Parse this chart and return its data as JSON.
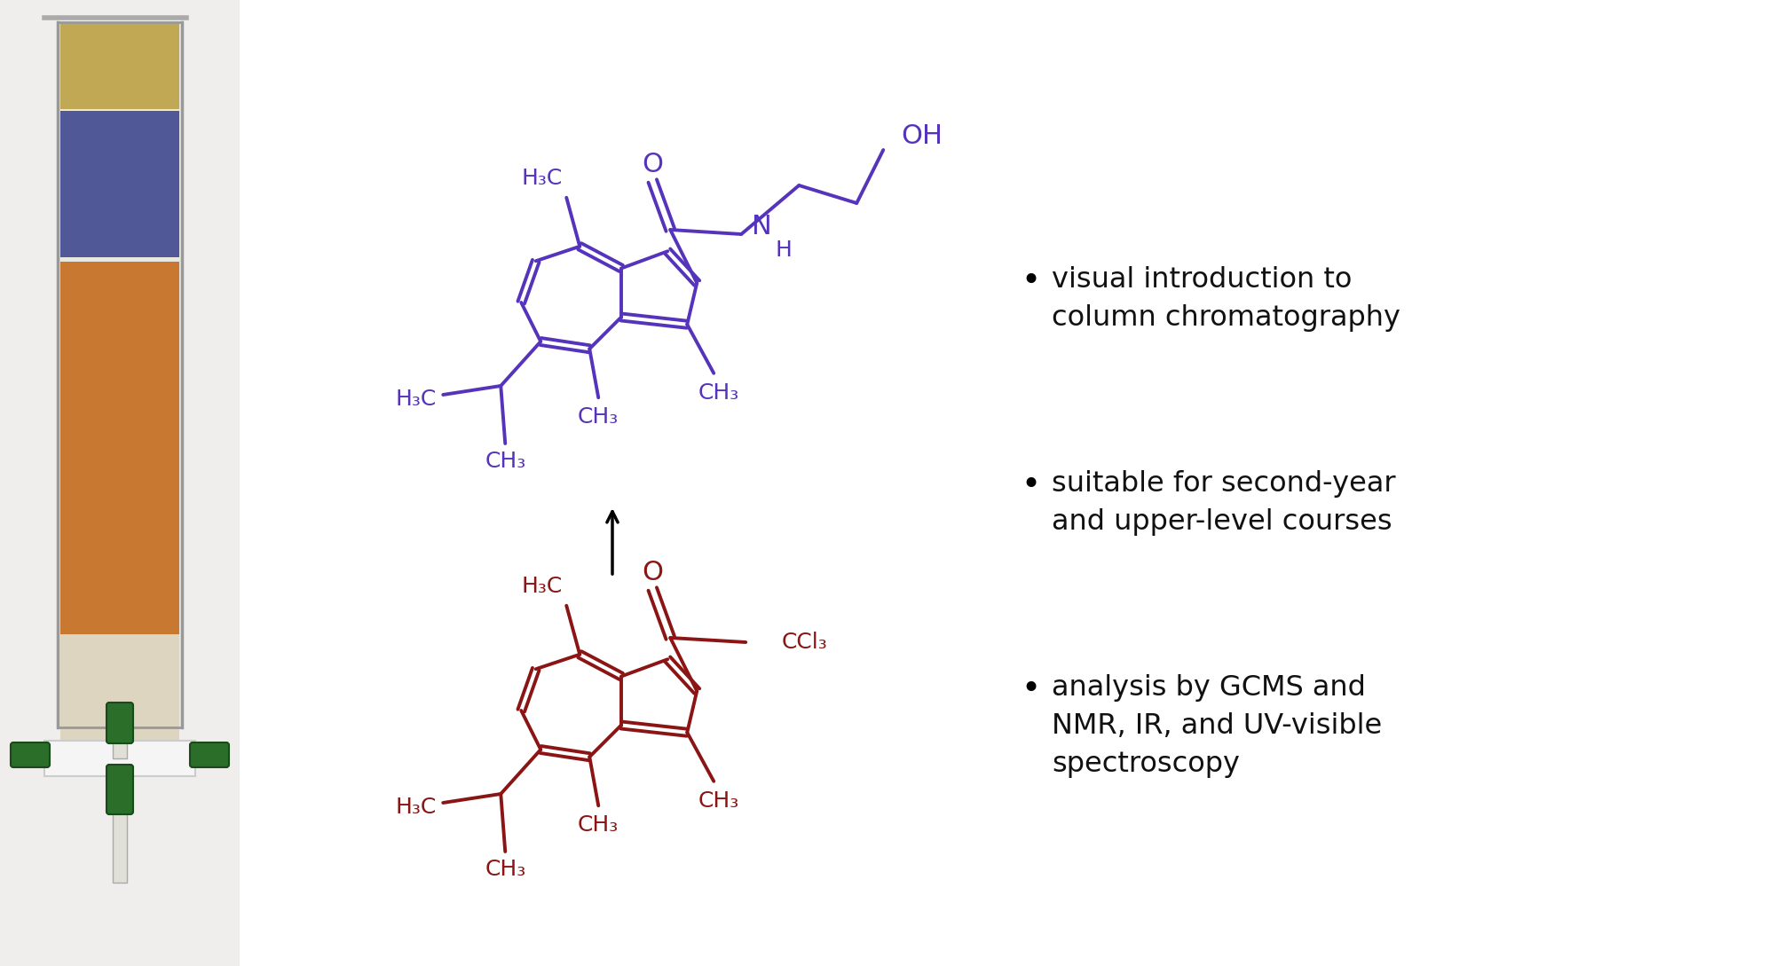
{
  "background_color": "#ffffff",
  "bullet_points": [
    "visual introduction to\ncolumn chromatography",
    "suitable for second-year\nand upper-level courses",
    "analysis by GCMS and\nNMR, IR, and UV-visible\nspectroscopy"
  ],
  "bullet_fontsize": 23,
  "bullet_color": "#111111",
  "purple_color": "#5533bb",
  "red_color": "#8b1414",
  "black_color": "#000000"
}
